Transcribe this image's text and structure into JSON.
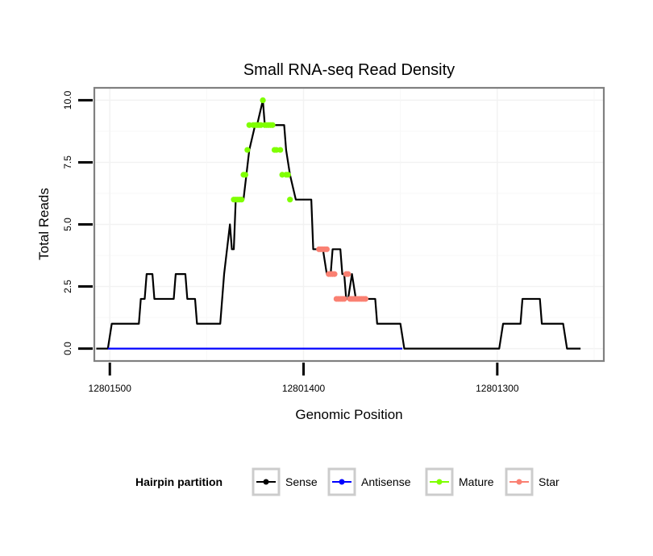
{
  "chart_data": {
    "type": "line",
    "title": "Small RNA-seq Read Density",
    "xlabel": "Genomic Position",
    "ylabel": "Total Reads",
    "x_reversed": true,
    "xlim": [
      12801508,
      12801245
    ],
    "ylim": [
      -0.5,
      10.5
    ],
    "x_ticks": [
      12801500,
      12801400,
      12801300
    ],
    "x_tick_labels": [
      "12801500",
      "12801400",
      "12801300"
    ],
    "y_ticks": [
      0,
      2.5,
      5,
      7.5,
      10
    ],
    "y_tick_labels": [
      "0.0",
      "2.5",
      "5.0",
      "7.5",
      "10.0"
    ],
    "grid": true,
    "legend": {
      "title": "Hairpin partition",
      "position": "bottom",
      "entries": [
        {
          "name": "Sense",
          "color": "#000000"
        },
        {
          "name": "Antisense",
          "color": "#0000ff"
        },
        {
          "name": "Mature",
          "color": "#7fff00"
        },
        {
          "name": "Star",
          "color": "#fa8072"
        }
      ]
    },
    "series": [
      {
        "name": "Sense",
        "color": "#000000",
        "marker": false,
        "x": [
          12801507,
          12801501,
          12801499,
          12801485,
          12801484,
          12801482,
          12801481,
          12801478,
          12801477,
          12801467,
          12801466,
          12801461,
          12801460,
          12801456,
          12801455,
          12801452,
          12801451,
          12801443,
          12801441,
          12801438,
          12801437,
          12801436,
          12801435,
          12801431,
          12801428,
          12801425,
          12801424,
          12801421,
          12801420,
          12801410,
          12801409,
          12801407,
          12801404,
          12801396,
          12801395,
          12801390,
          12801388,
          12801386,
          12801385,
          12801383,
          12801381,
          12801380,
          12801379,
          12801378,
          12801377,
          12801375,
          12801373,
          12801363,
          12801362,
          12801350,
          12801348,
          12801299,
          12801297,
          12801288,
          12801287,
          12801278,
          12801277,
          12801266,
          12801264,
          12801257
        ],
        "y": [
          0,
          0,
          1,
          1,
          2,
          2,
          3,
          3,
          2,
          2,
          3,
          3,
          2,
          2,
          1,
          1,
          1,
          1,
          3,
          5,
          4,
          4,
          6,
          6,
          8,
          9,
          9,
          10,
          9,
          9,
          8,
          7,
          6,
          6,
          4,
          4,
          3,
          3,
          4,
          4,
          4,
          3,
          3,
          2,
          2,
          3,
          2,
          2,
          1,
          1,
          0,
          0,
          1,
          1,
          2,
          2,
          1,
          1,
          0,
          0
        ]
      },
      {
        "name": "Antisense",
        "color": "#0000ff",
        "marker": false,
        "x": [
          12801501,
          12801349
        ],
        "y": [
          0,
          0
        ]
      },
      {
        "name": "Mature",
        "color": "#7fff00",
        "marker": true,
        "x": [
          12801436,
          12801435,
          12801434,
          12801433,
          12801432,
          12801431,
          12801430,
          12801429,
          12801428,
          12801426,
          12801425,
          12801424,
          12801423,
          12801422,
          12801421,
          12801420,
          12801419,
          12801418,
          12801417,
          12801416,
          12801415,
          12801414,
          12801412,
          12801411,
          12801409,
          12801408,
          12801407
        ],
        "y": [
          6,
          6,
          6,
          6,
          6,
          7,
          7,
          8,
          9,
          9,
          9,
          9,
          9,
          9,
          10,
          9,
          9,
          9,
          9,
          9,
          8,
          8,
          8,
          7,
          7,
          7,
          6
        ]
      },
      {
        "name": "Star",
        "color": "#fa8072",
        "marker": true,
        "x": [
          12801392,
          12801391,
          12801390,
          12801389,
          12801388,
          12801387,
          12801386,
          12801385,
          12801384,
          12801383,
          12801382,
          12801381,
          12801380,
          12801379,
          12801378,
          12801377,
          12801376,
          12801375,
          12801374,
          12801373,
          12801372,
          12801371,
          12801370,
          12801369,
          12801368
        ],
        "y": [
          4,
          4,
          4,
          4,
          4,
          3,
          3,
          3,
          3,
          2,
          2,
          2,
          2,
          2,
          3,
          3,
          2,
          2,
          2,
          2,
          2,
          2,
          2,
          2,
          2
        ]
      }
    ]
  }
}
